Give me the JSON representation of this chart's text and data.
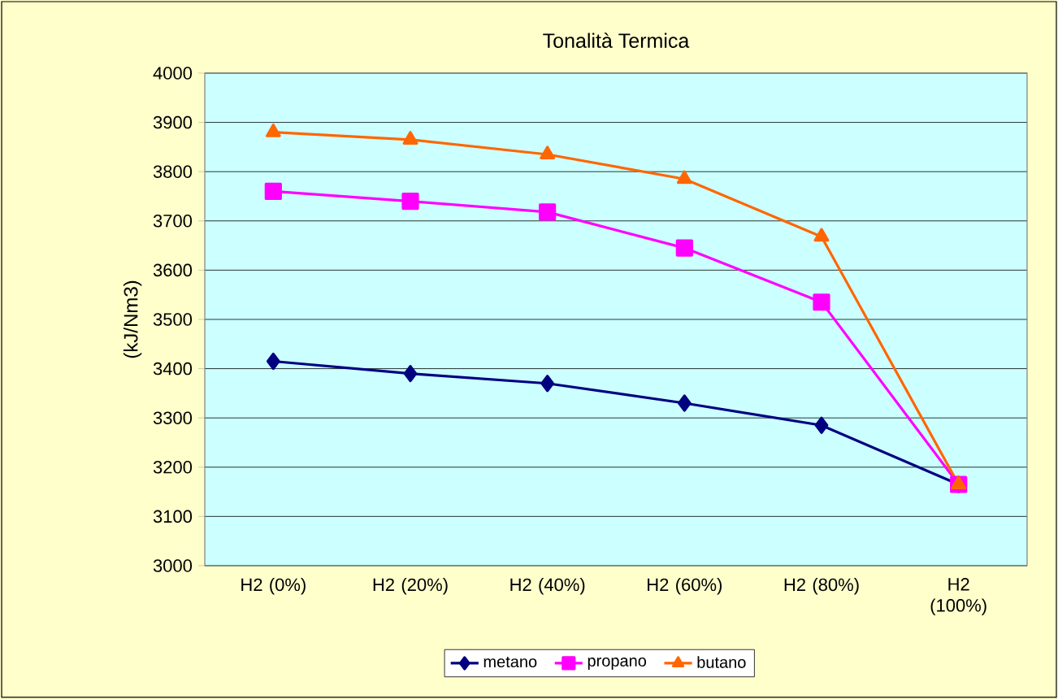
{
  "chart_data": {
    "type": "line",
    "title": "Tonalità Termica",
    "ylabel": "(kJ/Nm3)",
    "categories": [
      "H2 (0%)",
      "H2 (20%)",
      "H2 (40%)",
      "H2 (60%)",
      "H2 (80%)",
      "H2 (100%)"
    ],
    "series": [
      {
        "name": "metano",
        "color": "#000080",
        "marker": "diamond",
        "values": [
          3415,
          3390,
          3370,
          3330,
          3285,
          3165
        ]
      },
      {
        "name": "propano",
        "color": "#ff00ff",
        "marker": "square",
        "values": [
          3760,
          3740,
          3718,
          3645,
          3535,
          3165
        ]
      },
      {
        "name": "butano",
        "color": "#ff6600",
        "marker": "triangle",
        "values": [
          3880,
          3865,
          3835,
          3785,
          3668,
          3165
        ]
      }
    ],
    "ylim": [
      3000,
      4000
    ],
    "yticks": [
      3000,
      3100,
      3200,
      3300,
      3400,
      3500,
      3600,
      3700,
      3800,
      3900,
      4000
    ],
    "grid": "y",
    "legend": "bottom",
    "line_style": "solid"
  }
}
